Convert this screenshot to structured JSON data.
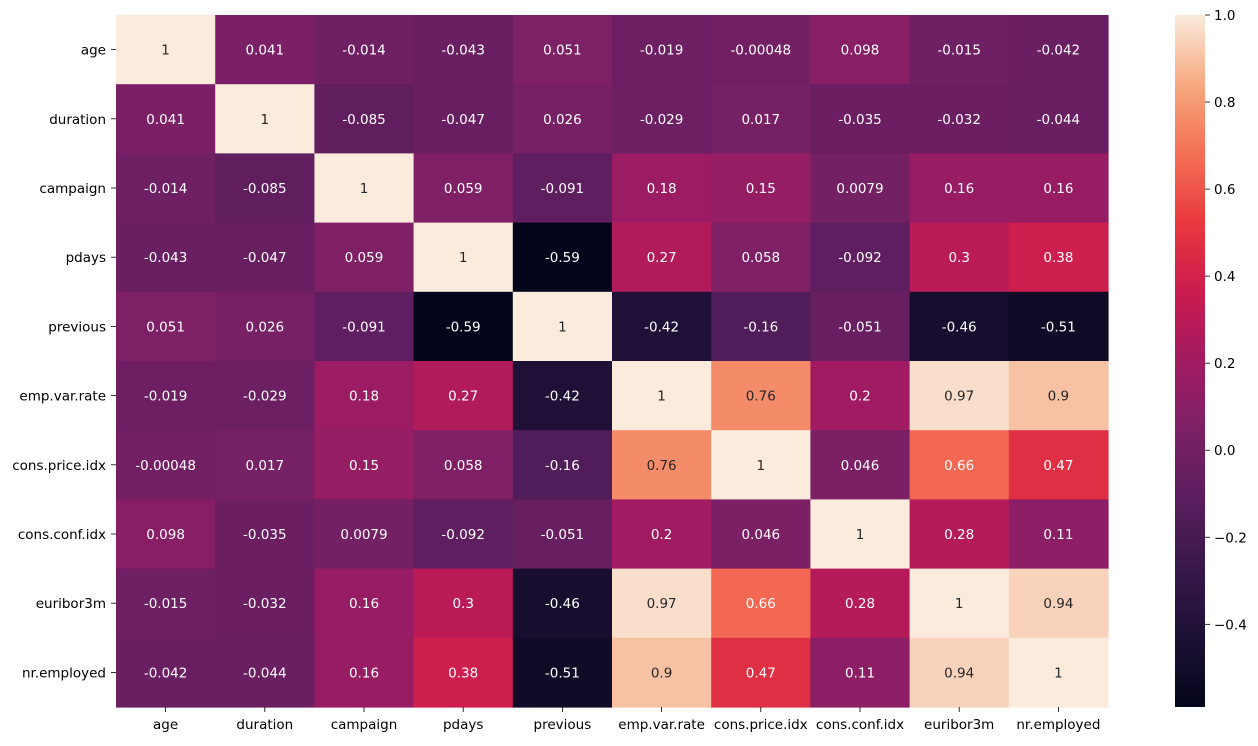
{
  "chart_data": {
    "type": "heatmap",
    "title": "",
    "xlabel": "",
    "ylabel": "",
    "rows": [
      "age",
      "duration",
      "campaign",
      "pdays",
      "previous",
      "emp.var.rate",
      "cons.price.idx",
      "cons.conf.idx",
      "euribor3m",
      "nr.employed"
    ],
    "columns": [
      "age",
      "duration",
      "campaign",
      "pdays",
      "previous",
      "emp.var.rate",
      "cons.price.idx",
      "cons.conf.idx",
      "euribor3m",
      "nr.employed"
    ],
    "values": [
      [
        1,
        0.041,
        -0.014,
        -0.043,
        0.051,
        -0.019,
        -0.00048,
        0.098,
        -0.015,
        -0.042
      ],
      [
        0.041,
        1,
        -0.085,
        -0.047,
        0.026,
        -0.029,
        0.017,
        -0.035,
        -0.032,
        -0.044
      ],
      [
        -0.014,
        -0.085,
        1,
        0.059,
        -0.091,
        0.18,
        0.15,
        0.0079,
        0.16,
        0.16
      ],
      [
        -0.043,
        -0.047,
        0.059,
        1,
        -0.59,
        0.27,
        0.058,
        -0.092,
        0.3,
        0.38
      ],
      [
        0.051,
        0.026,
        -0.091,
        -0.59,
        1,
        -0.42,
        -0.16,
        -0.051,
        -0.46,
        -0.51
      ],
      [
        -0.019,
        -0.029,
        0.18,
        0.27,
        -0.42,
        1,
        0.76,
        0.2,
        0.97,
        0.9
      ],
      [
        -0.00048,
        0.017,
        0.15,
        0.058,
        -0.16,
        0.76,
        1,
        0.046,
        0.66,
        0.47
      ],
      [
        0.098,
        -0.035,
        0.0079,
        -0.092,
        -0.051,
        0.2,
        0.046,
        1,
        0.28,
        0.11
      ],
      [
        -0.015,
        -0.032,
        0.16,
        0.3,
        -0.46,
        0.97,
        0.66,
        0.28,
        1,
        0.94
      ],
      [
        -0.042,
        -0.044,
        0.16,
        0.38,
        -0.51,
        0.9,
        0.47,
        0.11,
        0.94,
        1
      ]
    ],
    "annotations": [
      [
        "1",
        "0.041",
        "-0.014",
        "-0.043",
        "0.051",
        "-0.019",
        "-0.00048",
        "0.098",
        "-0.015",
        "-0.042"
      ],
      [
        "0.041",
        "1",
        "-0.085",
        "-0.047",
        "0.026",
        "-0.029",
        "0.017",
        "-0.035",
        "-0.032",
        "-0.044"
      ],
      [
        "-0.014",
        "-0.085",
        "1",
        "0.059",
        "-0.091",
        "0.18",
        "0.15",
        "0.0079",
        "0.16",
        "0.16"
      ],
      [
        "-0.043",
        "-0.047",
        "0.059",
        "1",
        "-0.59",
        "0.27",
        "0.058",
        "-0.092",
        "0.3",
        "0.38"
      ],
      [
        "0.051",
        "0.026",
        "-0.091",
        "-0.59",
        "1",
        "-0.42",
        "-0.16",
        "-0.051",
        "-0.46",
        "-0.51"
      ],
      [
        "-0.019",
        "-0.029",
        "0.18",
        "0.27",
        "-0.42",
        "1",
        "0.76",
        "0.2",
        "0.97",
        "0.9"
      ],
      [
        "-0.00048",
        "0.017",
        "0.15",
        "0.058",
        "-0.16",
        "0.76",
        "1",
        "0.046",
        "0.66",
        "0.47"
      ],
      [
        "0.098",
        "-0.035",
        "0.0079",
        "-0.092",
        "-0.051",
        "0.2",
        "0.046",
        "1",
        "0.28",
        "0.11"
      ],
      [
        "-0.015",
        "-0.032",
        "0.16",
        "0.3",
        "-0.46",
        "0.97",
        "0.66",
        "0.28",
        "1",
        "0.94"
      ],
      [
        "-0.042",
        "-0.044",
        "0.16",
        "0.38",
        "-0.51",
        "0.9",
        "0.47",
        "0.11",
        "0.94",
        "1"
      ]
    ],
    "colormap": "rocket",
    "colorbar": {
      "vmin": -0.59,
      "vmax": 1.0,
      "ticks": [
        1.0,
        0.8,
        0.6,
        0.4,
        0.2,
        0.0,
        -0.2,
        -0.4
      ],
      "tick_labels": [
        "1.0",
        "0.8",
        "0.6",
        "0.4",
        "0.2",
        "0.0",
        "−0.2",
        "−0.4"
      ],
      "location": "right"
    },
    "grid": false
  }
}
